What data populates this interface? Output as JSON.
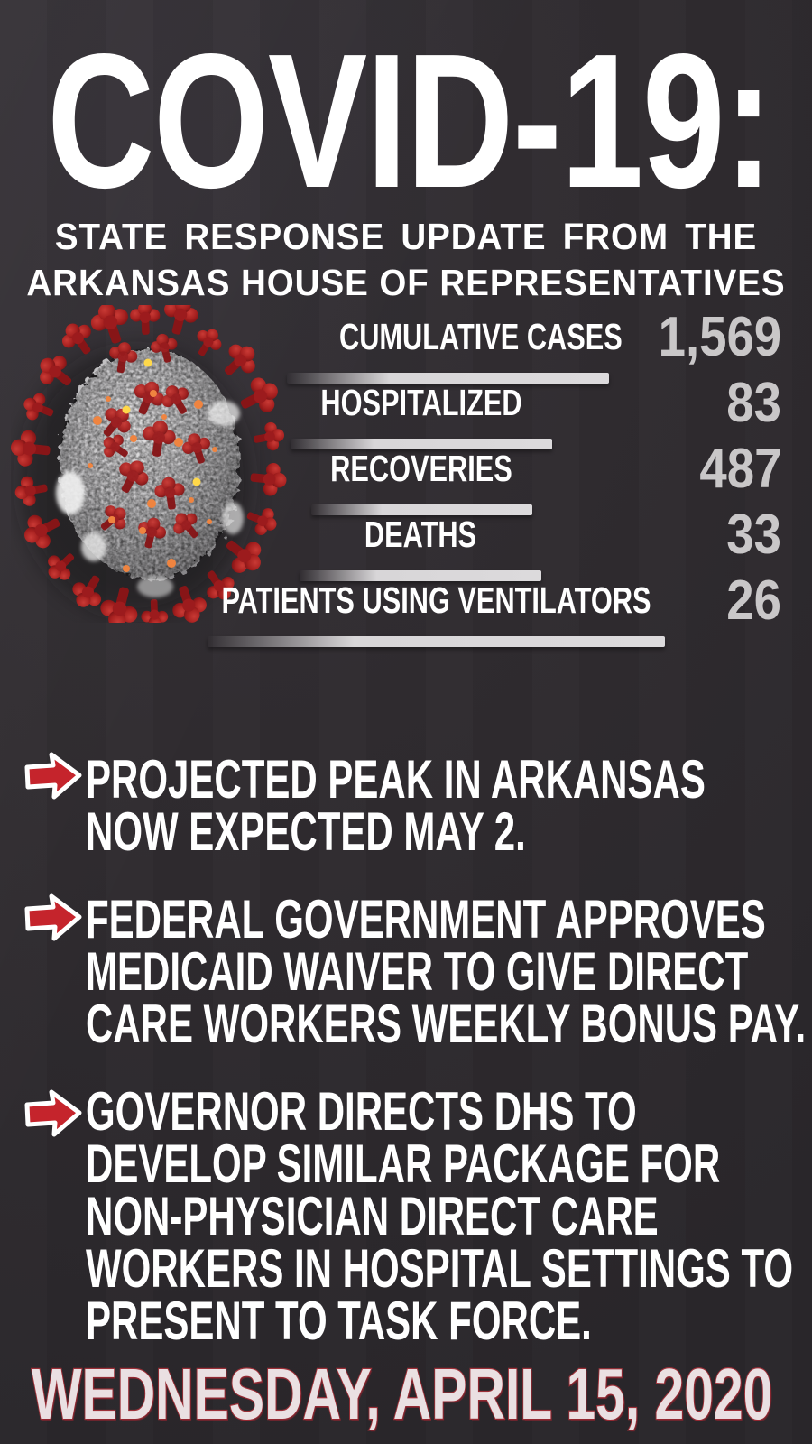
{
  "title": "COVID-19:",
  "subtitle": {
    "line1": "STATE RESPONSE UPDATE FROM THE",
    "line2": "ARKANSAS HOUSE OF REPRESENTATIVES"
  },
  "stats": {
    "rows": [
      {
        "label": "CUMULATIVE CASES",
        "value": "1,569"
      },
      {
        "label": "HOSPITALIZED",
        "value": "83"
      },
      {
        "label": "RECOVERIES",
        "value": "487"
      },
      {
        "label": "DEATHS",
        "value": "33"
      },
      {
        "label": "PATIENTS USING VENTILATORS",
        "value": "26"
      }
    ]
  },
  "bullets": [
    {
      "lines": [
        "PROJECTED PEAK IN ARKANSAS",
        "NOW EXPECTED MAY 2."
      ]
    },
    {
      "lines": [
        "FEDERAL GOVERNMENT APPROVES",
        "MEDICAID WAIVER TO GIVE DIRECT",
        "CARE WORKERS WEEKLY BONUS PAY."
      ]
    },
    {
      "lines": [
        "GOVERNOR DIRECTS DHS TO",
        "DEVELOP SIMILAR PACKAGE FOR",
        "NON-PHYSICIAN DIRECT CARE",
        "WORKERS IN HOSPITAL SETTINGS TO",
        "PRESENT TO TASK FORCE."
      ]
    }
  ],
  "footer": {
    "date": "WEDNESDAY, APRIL 15, 2020"
  },
  "icons": {
    "bullet": "red-arrow-right-icon",
    "illustration": "coronavirus-particle"
  },
  "colors": {
    "background": "#302c30",
    "text": "#ffffff",
    "number_silver": "#c9c7c8",
    "bar_silver": "#d8d6d8",
    "accent_red": "#c5242c",
    "date_pink": "#eae0e2",
    "date_outline_red": "#9c2f37"
  }
}
